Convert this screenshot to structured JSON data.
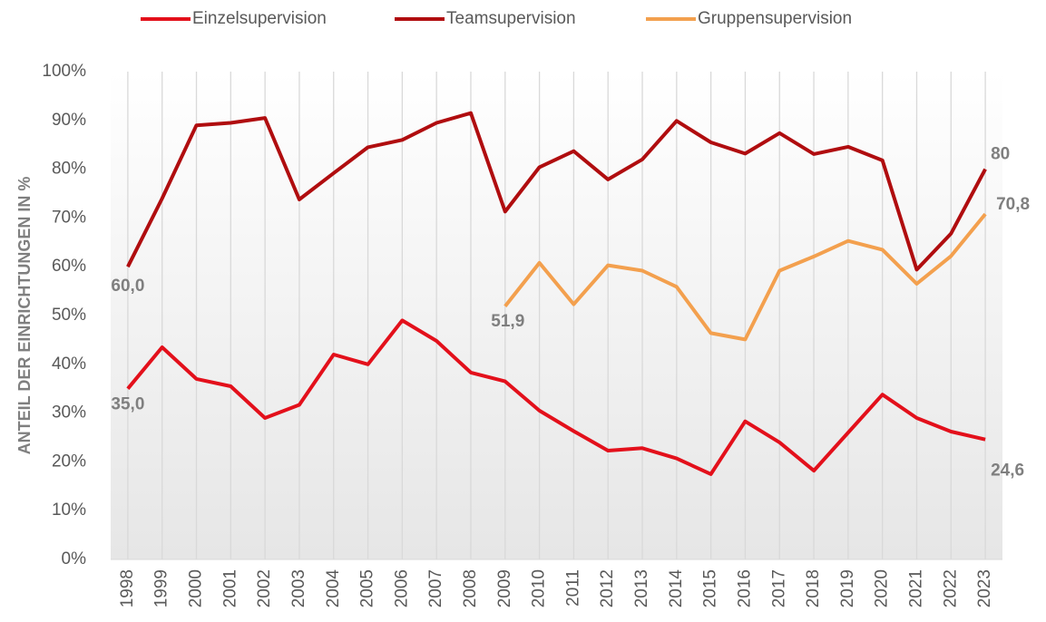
{
  "chart_data": {
    "type": "line",
    "y_label": "ANTEIL DER EINRICHTUNGEN IN %",
    "categories": [
      "1998",
      "1999",
      "2000",
      "2001",
      "2002",
      "2003",
      "2004",
      "2005",
      "2006",
      "2007",
      "2008",
      "2009",
      "2010",
      "2011",
      "2012",
      "2013",
      "2014",
      "2015",
      "2016",
      "2017",
      "2018",
      "2019",
      "2020",
      "2021",
      "2022",
      "2023"
    ],
    "series": [
      {
        "name": "Einzelsupervision",
        "color": "#e3101b",
        "values": [
          35.0,
          43.5,
          37,
          35.5,
          29,
          31.7,
          42,
          40,
          49,
          44.8,
          38.3,
          36.5,
          30.5,
          26.3,
          22.3,
          22.8,
          20.7,
          17.5,
          28.3,
          24,
          18.2,
          26,
          33.8,
          29,
          26.2,
          24.6
        ],
        "value_labels": [
          "35,0",
          null,
          null,
          null,
          null,
          null,
          null,
          null,
          null,
          null,
          null,
          null,
          null,
          null,
          null,
          null,
          null,
          null,
          null,
          null,
          null,
          null,
          null,
          null,
          null,
          "24,6"
        ]
      },
      {
        "name": "Teamsupervision",
        "color": "#b00d0f",
        "values": [
          60.0,
          74,
          89,
          89.5,
          90.5,
          73.8,
          79.2,
          84.5,
          86,
          89.5,
          91.5,
          71.3,
          80.4,
          83.7,
          77.9,
          82,
          89.9,
          85.5,
          83.2,
          87.4,
          83.1,
          84.6,
          81.8,
          59.4,
          66.8,
          80
        ],
        "value_labels": [
          "60,0",
          null,
          null,
          null,
          null,
          null,
          null,
          null,
          null,
          null,
          null,
          null,
          null,
          null,
          null,
          null,
          null,
          null,
          null,
          null,
          null,
          null,
          null,
          null,
          null,
          "80"
        ]
      },
      {
        "name": "Gruppensupervision",
        "color": "#f3a04e",
        "values": [
          null,
          null,
          null,
          null,
          null,
          null,
          null,
          null,
          null,
          null,
          null,
          51.9,
          60.8,
          52.3,
          60.3,
          59.2,
          55.9,
          46.4,
          45.1,
          59.2,
          62.1,
          65.3,
          63.5,
          56.5,
          62.2,
          70.8
        ],
        "value_labels": [
          null,
          null,
          null,
          null,
          null,
          null,
          null,
          null,
          null,
          null,
          null,
          "51,9",
          null,
          null,
          null,
          null,
          null,
          null,
          null,
          null,
          null,
          null,
          null,
          null,
          null,
          "70,8"
        ]
      }
    ],
    "ylim": [
      0,
      100
    ],
    "yticks": [
      {
        "value": 0,
        "label": "0%"
      },
      {
        "value": 10,
        "label": "10%"
      },
      {
        "value": 20,
        "label": "20%"
      },
      {
        "value": 30,
        "label": "30%"
      },
      {
        "value": 40,
        "label": "40%"
      },
      {
        "value": 50,
        "label": "50%"
      },
      {
        "value": 60,
        "label": "60%"
      },
      {
        "value": 70,
        "label": "70%"
      },
      {
        "value": 80,
        "label": "80%"
      },
      {
        "value": 90,
        "label": "90%"
      },
      {
        "value": 100,
        "label": "100%"
      }
    ],
    "grid": true
  }
}
